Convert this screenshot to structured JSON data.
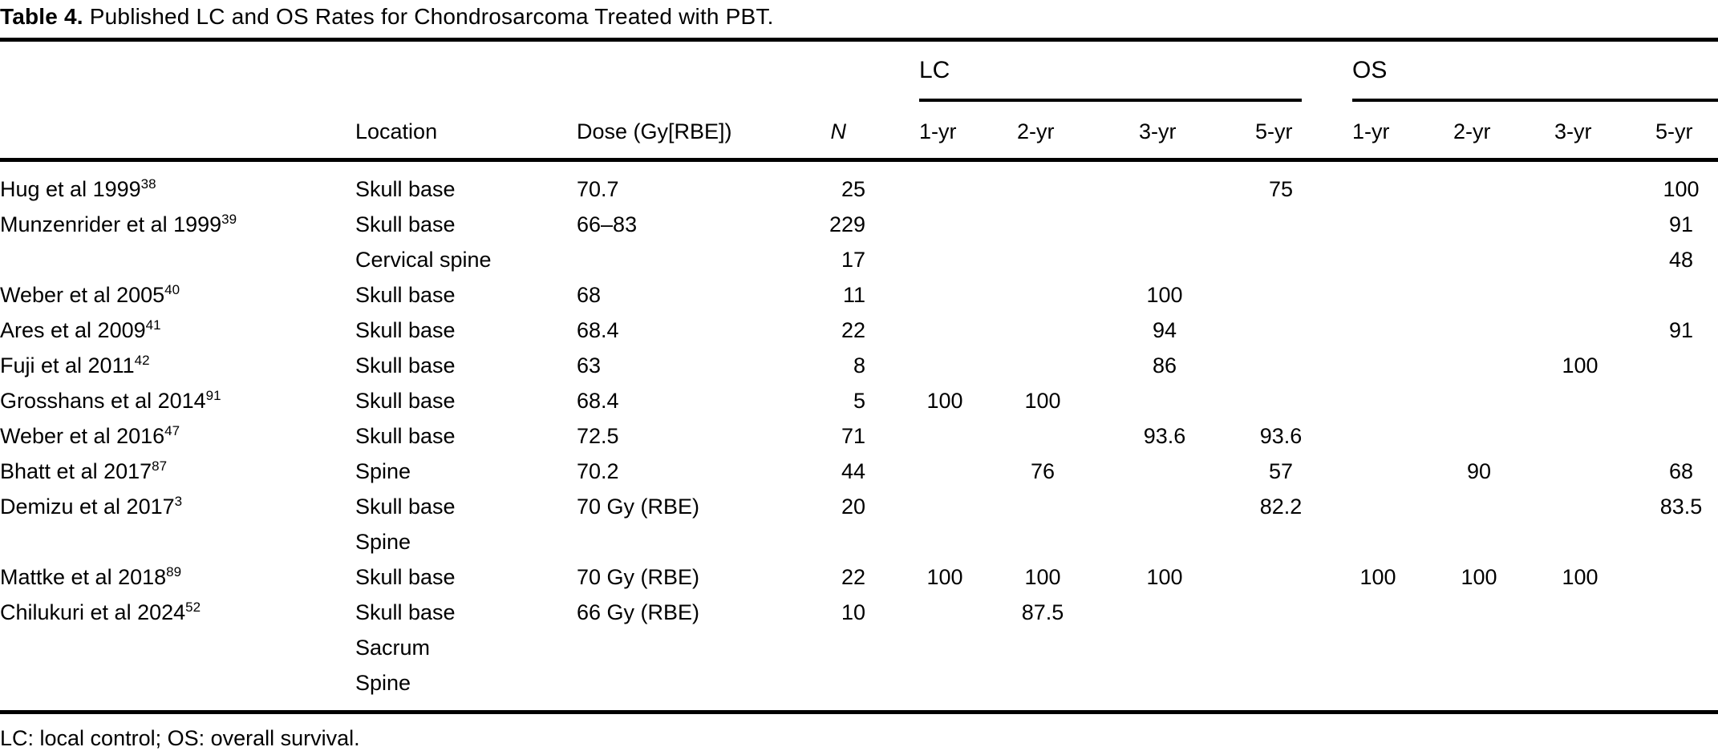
{
  "table": {
    "title": {
      "label": "Table 4.",
      "text": "Published LC and OS Rates for Chondrosarcoma Treated with PBT."
    },
    "headers": {
      "location": "Location",
      "dose": "Dose (Gy[RBE])",
      "n": "N",
      "lc_group": "LC",
      "os_group": "OS",
      "year_cols": [
        "1-yr",
        "2-yr",
        "3-yr",
        "5-yr"
      ]
    },
    "rows": [
      {
        "study": "Hug et al 1999",
        "ref": "38",
        "location": "Skull base",
        "dose": "70.7",
        "n": "25",
        "lc": [
          "",
          "",
          "",
          "75"
        ],
        "os": [
          "",
          "",
          "",
          "100"
        ]
      },
      {
        "study": "Munzenrider et al 1999",
        "ref": "39",
        "location": "Skull base",
        "dose": "66–83",
        "n": "229",
        "lc": [
          "",
          "",
          "",
          ""
        ],
        "os": [
          "",
          "",
          "",
          "91"
        ]
      },
      {
        "study": "",
        "ref": "",
        "location": "Cervical spine",
        "dose": "",
        "n": "17",
        "lc": [
          "",
          "",
          "",
          ""
        ],
        "os": [
          "",
          "",
          "",
          "48"
        ]
      },
      {
        "study": "Weber et al 2005",
        "ref": "40",
        "location": "Skull base",
        "dose": "68",
        "n": "11",
        "lc": [
          "",
          "",
          "100",
          ""
        ],
        "os": [
          "",
          "",
          "",
          ""
        ]
      },
      {
        "study": "Ares et al 2009",
        "ref": "41",
        "location": "Skull base",
        "dose": "68.4",
        "n": "22",
        "lc": [
          "",
          "",
          "94",
          ""
        ],
        "os": [
          "",
          "",
          "",
          "91"
        ]
      },
      {
        "study": "Fuji et al 2011",
        "ref": "42",
        "location": "Skull base",
        "dose": "63",
        "n": "8",
        "lc": [
          "",
          "",
          "86",
          ""
        ],
        "os": [
          "",
          "",
          "100",
          ""
        ]
      },
      {
        "study": "Grosshans et al 2014",
        "ref": "91",
        "location": "Skull base",
        "dose": "68.4",
        "n": "5",
        "lc": [
          "100",
          "100",
          "",
          ""
        ],
        "os": [
          "",
          "",
          "",
          ""
        ]
      },
      {
        "study": "Weber et al 2016",
        "ref": "47",
        "location": "Skull base",
        "dose": "72.5",
        "n": "71",
        "lc": [
          "",
          "",
          "93.6",
          "93.6"
        ],
        "os": [
          "",
          "",
          "",
          ""
        ]
      },
      {
        "study": "Bhatt et al 2017",
        "ref": "87",
        "location": "Spine",
        "dose": "70.2",
        "n": "44",
        "lc": [
          "",
          "76",
          "",
          "57"
        ],
        "os": [
          "",
          "90",
          "",
          "68"
        ]
      },
      {
        "study": "Demizu et al 2017",
        "ref": "3",
        "location": "Skull base",
        "dose": "70 Gy (RBE)",
        "n": "20",
        "lc": [
          "",
          "",
          "",
          "82.2"
        ],
        "os": [
          "",
          "",
          "",
          "83.5"
        ]
      },
      {
        "study": "",
        "ref": "",
        "location": "Spine",
        "dose": "",
        "n": "",
        "lc": [
          "",
          "",
          "",
          ""
        ],
        "os": [
          "",
          "",
          "",
          ""
        ]
      },
      {
        "study": "Mattke et al 2018",
        "ref": "89",
        "location": "Skull base",
        "dose": "70 Gy (RBE)",
        "n": "22",
        "lc": [
          "100",
          "100",
          "100",
          ""
        ],
        "os": [
          "100",
          "100",
          "100",
          ""
        ]
      },
      {
        "study": "Chilukuri et al 2024",
        "ref": "52",
        "location": "Skull base",
        "dose": "66 Gy (RBE)",
        "n": "10",
        "lc": [
          "",
          "87.5",
          "",
          ""
        ],
        "os": [
          "",
          "",
          "",
          ""
        ]
      },
      {
        "study": "",
        "ref": "",
        "location": "Sacrum",
        "dose": "",
        "n": "",
        "lc": [
          "",
          "",
          "",
          ""
        ],
        "os": [
          "",
          "",
          "",
          ""
        ]
      },
      {
        "study": "",
        "ref": "",
        "location": "Spine",
        "dose": "",
        "n": "",
        "lc": [
          "",
          "",
          "",
          ""
        ],
        "os": [
          "",
          "",
          "",
          ""
        ]
      }
    ],
    "footnote": "LC: local control; OS: overall survival."
  }
}
